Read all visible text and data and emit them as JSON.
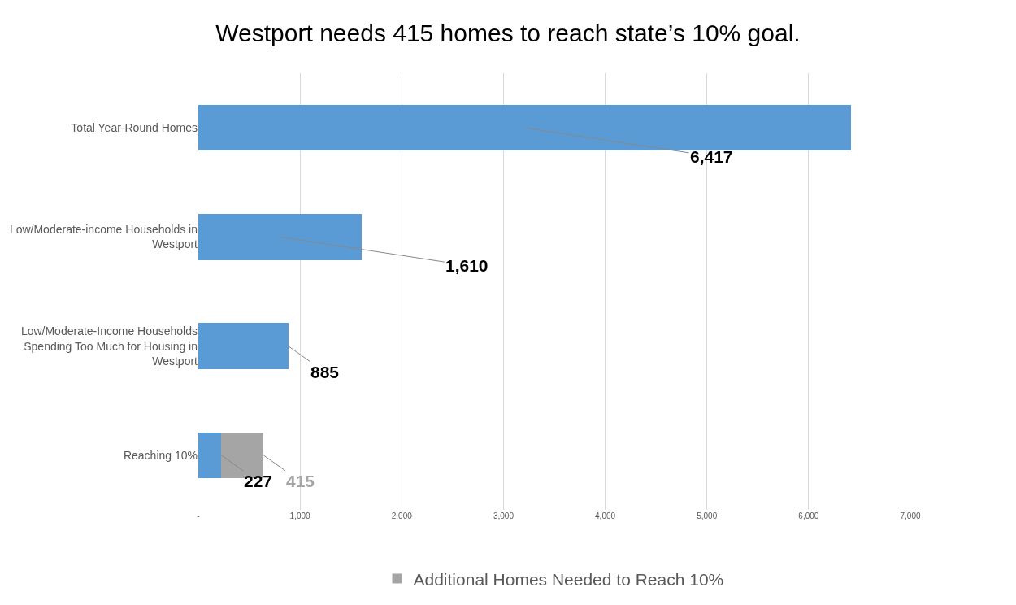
{
  "chart_data": {
    "type": "bar",
    "orientation": "horizontal",
    "stacked": true,
    "title": "Westport needs 415 homes to reach state’s 10% goal.",
    "categories": [
      "Total Year-Round Homes",
      "Low/Moderate-income Households in Westport",
      "Low/Moderate-Income Households Spending Too Much for Housing in Westport",
      "Reaching 10%"
    ],
    "series": [
      {
        "color": "#5b9bd5",
        "values": [
          6417,
          1610,
          885,
          227
        ],
        "value_labels": [
          "6,417",
          "1,610",
          "885",
          "227"
        ]
      },
      {
        "name": "Additional Homes Needed to Reach 10%",
        "color": "#a5a5a5",
        "values": [
          null,
          null,
          null,
          415
        ],
        "value_labels": [
          null,
          null,
          null,
          "415"
        ]
      }
    ],
    "xlim": [
      0,
      7000
    ],
    "xticks": [
      {
        "value": 0,
        "label": "-"
      },
      {
        "value": 1000,
        "label": "1,000"
      },
      {
        "value": 2000,
        "label": "2,000"
      },
      {
        "value": 3000,
        "label": "3,000"
      },
      {
        "value": 4000,
        "label": "4,000"
      },
      {
        "value": 5000,
        "label": "5,000"
      },
      {
        "value": 6000,
        "label": "6,000"
      },
      {
        "value": 7000,
        "label": "7,000"
      }
    ],
    "grid": "x",
    "legend": "bottom"
  }
}
